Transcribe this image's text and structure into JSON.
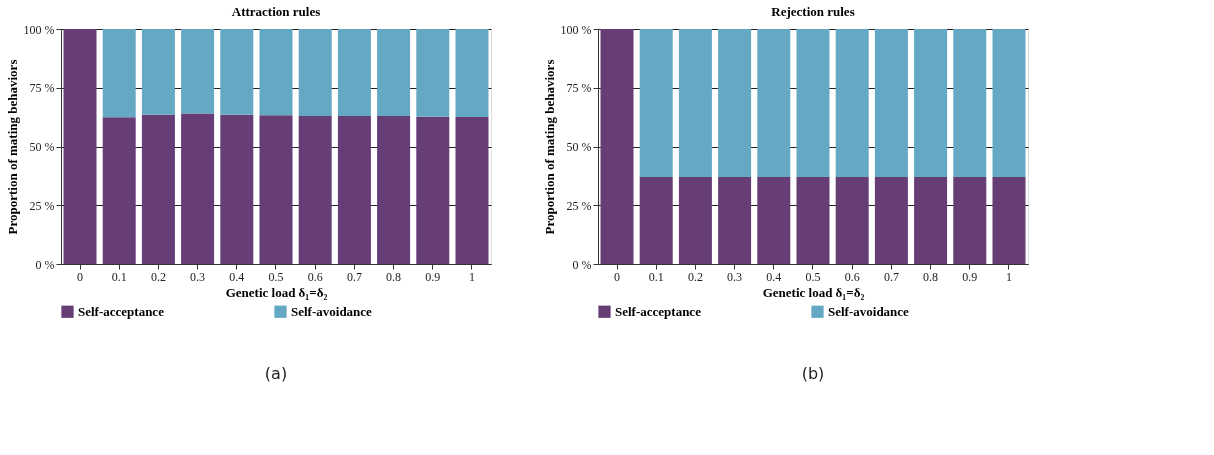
{
  "chart_data": [
    {
      "type": "bar",
      "title": "Attraction rules",
      "xlabel": "Genetic load δ₁=δ₂",
      "ylabel": "Proportion of mating behaviors",
      "categories": [
        "0",
        "0.1",
        "0.2",
        "0.3",
        "0.4",
        "0.5",
        "0.6",
        "0.7",
        "0.8",
        "0.9",
        "1"
      ],
      "stacked": true,
      "series": [
        {
          "name": "Self-acceptance",
          "color": "#663d74",
          "values": [
            100,
            62.5,
            63.5,
            64,
            63.5,
            63.3,
            63,
            63,
            63,
            62.7,
            62.6
          ]
        },
        {
          "name": "Self-avoidance",
          "color": "#64a8c4",
          "values": [
            0,
            37.5,
            36.5,
            36,
            36.5,
            36.7,
            37,
            37,
            37,
            37.3,
            37.4
          ]
        }
      ],
      "ylim": [
        0,
        100
      ],
      "yticks": [
        {
          "value": 0,
          "label": "0 %"
        },
        {
          "value": 25,
          "label": "25 %"
        },
        {
          "value": 50,
          "label": "50 %"
        },
        {
          "value": 75,
          "label": "75 %"
        },
        {
          "value": 100,
          "label": "100 %"
        }
      ],
      "grid": "y",
      "legend": "bottom",
      "annotations": [
        "(a)"
      ]
    },
    {
      "type": "bar",
      "title": "Rejection rules",
      "xlabel": "Genetic load δ₁=δ₂",
      "ylabel": "Proportion of mating behaviors",
      "categories": [
        "0",
        "0.1",
        "0.2",
        "0.3",
        "0.4",
        "0.5",
        "0.6",
        "0.7",
        "0.8",
        "0.9",
        "1"
      ],
      "stacked": true,
      "series": [
        {
          "name": "Self-acceptance",
          "color": "#663d74",
          "values": [
            100,
            37,
            37,
            37,
            37,
            37,
            37,
            37,
            37,
            37,
            37
          ]
        },
        {
          "name": "Self-avoidance",
          "color": "#64a8c4",
          "values": [
            0,
            63,
            63,
            63,
            63,
            63,
            63,
            63,
            63,
            63,
            63
          ]
        }
      ],
      "ylim": [
        0,
        100
      ],
      "yticks": [
        {
          "value": 0,
          "label": "0 %"
        },
        {
          "value": 25,
          "label": "25 %"
        },
        {
          "value": 50,
          "label": "50 %"
        },
        {
          "value": 75,
          "label": "75 %"
        },
        {
          "value": 100,
          "label": "100 %"
        }
      ],
      "grid": "y",
      "legend": "bottom",
      "annotations": [
        "(b)"
      ]
    }
  ]
}
